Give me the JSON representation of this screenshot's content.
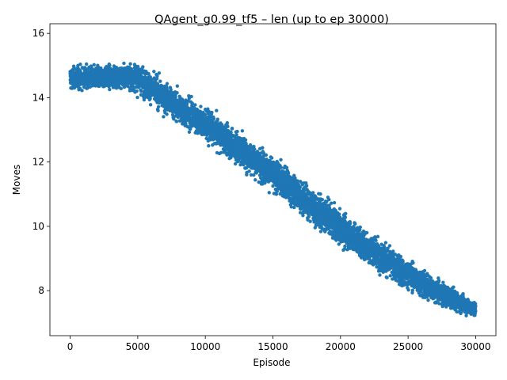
{
  "chart_data": {
    "type": "scatter",
    "title": "QAgent_g0.99_tf5 – len (up to ep 30000)",
    "xlabel": "Episode",
    "ylabel": "Moves",
    "xlim": [
      -1500,
      31500
    ],
    "ylim": [
      6.6,
      16.3
    ],
    "xticks": [
      0,
      5000,
      10000,
      15000,
      20000,
      25000,
      30000
    ],
    "xtick_labels": [
      "0",
      "5000",
      "10000",
      "15000",
      "20000",
      "25000",
      "30000"
    ],
    "yticks": [
      8,
      10,
      12,
      14,
      16
    ],
    "ytick_labels": [
      "8",
      "10",
      "12",
      "14",
      "16"
    ],
    "grid": false,
    "marker_color": "#1f77b4",
    "series": [
      {
        "points_count": 30000,
        "x": [
          0,
          1000,
          2000,
          3000,
          4000,
          5000,
          6000,
          7000,
          8000,
          9000,
          10000,
          11000,
          12000,
          13000,
          14000,
          15000,
          16000,
          17000,
          18000,
          19000,
          20000,
          21000,
          22000,
          23000,
          24000,
          25000,
          26000,
          27000,
          28000,
          29000,
          30000
        ],
        "y_center": [
          14.6,
          14.62,
          14.63,
          14.65,
          14.66,
          14.62,
          14.3,
          14.0,
          13.7,
          13.45,
          13.15,
          12.85,
          12.55,
          12.25,
          11.95,
          11.6,
          11.3,
          10.95,
          10.6,
          10.3,
          9.95,
          9.65,
          9.35,
          9.05,
          8.75,
          8.5,
          8.25,
          8.0,
          7.8,
          7.6,
          7.4
        ],
        "y_lower": [
          13.9,
          13.95,
          13.95,
          13.95,
          13.95,
          13.6,
          13.3,
          13.0,
          12.7,
          12.4,
          12.1,
          11.8,
          11.5,
          11.1,
          10.8,
          10.5,
          10.1,
          9.8,
          9.5,
          9.2,
          8.9,
          8.6,
          8.35,
          8.1,
          7.85,
          7.65,
          7.5,
          7.35,
          7.25,
          7.2,
          7.2
        ],
        "y_upper": [
          15.25,
          15.3,
          15.3,
          15.3,
          15.35,
          15.3,
          15.05,
          14.8,
          14.55,
          14.3,
          14.0,
          13.7,
          13.4,
          13.1,
          12.8,
          12.5,
          12.2,
          11.85,
          11.55,
          11.25,
          10.95,
          10.6,
          10.3,
          10.0,
          9.7,
          9.4,
          9.1,
          8.8,
          8.55,
          8.3,
          8.0
        ]
      }
    ]
  }
}
